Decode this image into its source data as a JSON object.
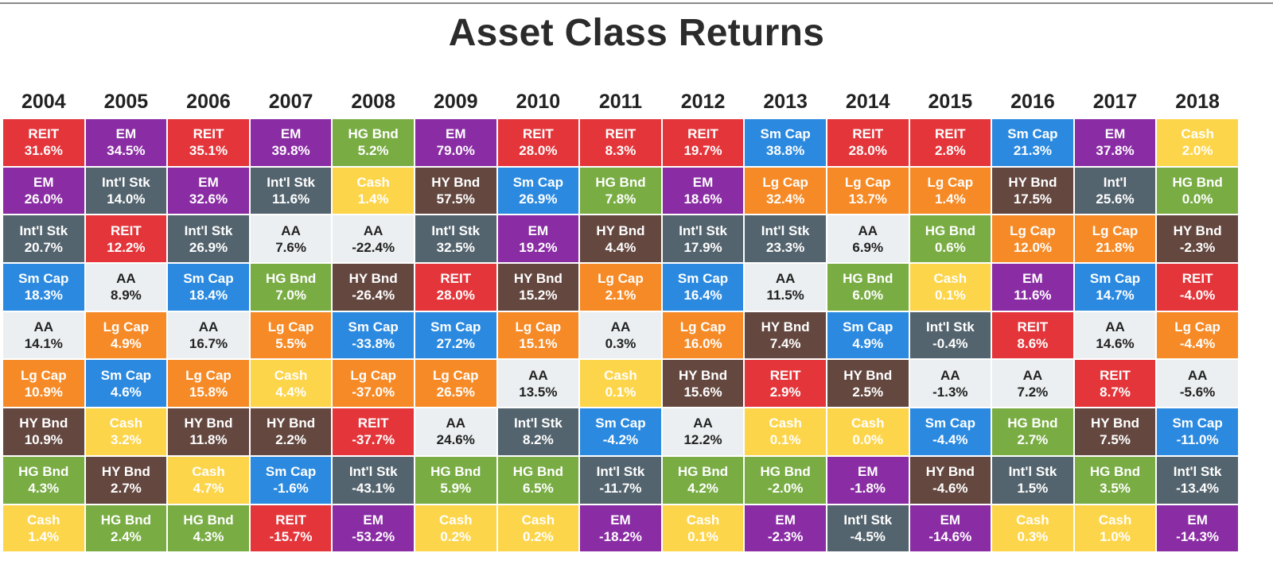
{
  "title": "Asset Class Returns",
  "colors": {
    "REIT": "#e3353a",
    "EM": "#8a2ca4",
    "Int'l Stk": "#54646e",
    "Int'l": "#54646e",
    "Sm Cap": "#2b8ae0",
    "AA": "#eceff1",
    "Lg Cap": "#f68a26",
    "HY Bnd": "#644840",
    "HG Bnd": "#79ad44",
    "Cash": "#fdd54a"
  },
  "chart_data": {
    "type": "table",
    "title": "Asset Class Returns",
    "years": [
      "2004",
      "2005",
      "2006",
      "2007",
      "2008",
      "2009",
      "2010",
      "2011",
      "2012",
      "2013",
      "2014",
      "2015",
      "2016",
      "2017",
      "2018"
    ],
    "columns": [
      [
        {
          "asset": "REIT",
          "value": "31.6%"
        },
        {
          "asset": "EM",
          "value": "26.0%"
        },
        {
          "asset": "Int'l Stk",
          "value": "20.7%"
        },
        {
          "asset": "Sm Cap",
          "value": "18.3%"
        },
        {
          "asset": "AA",
          "value": "14.1%"
        },
        {
          "asset": "Lg Cap",
          "value": "10.9%"
        },
        {
          "asset": "HY Bnd",
          "value": "10.9%"
        },
        {
          "asset": "HG Bnd",
          "value": "4.3%"
        },
        {
          "asset": "Cash",
          "value": "1.4%"
        }
      ],
      [
        {
          "asset": "EM",
          "value": "34.5%"
        },
        {
          "asset": "Int'l Stk",
          "value": "14.0%"
        },
        {
          "asset": "REIT",
          "value": "12.2%"
        },
        {
          "asset": "AA",
          "value": "8.9%"
        },
        {
          "asset": "Lg Cap",
          "value": "4.9%"
        },
        {
          "asset": "Sm Cap",
          "value": "4.6%"
        },
        {
          "asset": "Cash",
          "value": "3.2%"
        },
        {
          "asset": "HY Bnd",
          "value": "2.7%"
        },
        {
          "asset": "HG Bnd",
          "value": "2.4%"
        }
      ],
      [
        {
          "asset": "REIT",
          "value": "35.1%"
        },
        {
          "asset": "EM",
          "value": "32.6%"
        },
        {
          "asset": "Int'l Stk",
          "value": "26.9%"
        },
        {
          "asset": "Sm Cap",
          "value": "18.4%"
        },
        {
          "asset": "AA",
          "value": "16.7%"
        },
        {
          "asset": "Lg Cap",
          "value": "15.8%"
        },
        {
          "asset": "HY Bnd",
          "value": "11.8%"
        },
        {
          "asset": "Cash",
          "value": "4.7%"
        },
        {
          "asset": "HG Bnd",
          "value": "4.3%"
        }
      ],
      [
        {
          "asset": "EM",
          "value": "39.8%"
        },
        {
          "asset": "Int'l Stk",
          "value": "11.6%"
        },
        {
          "asset": "AA",
          "value": "7.6%"
        },
        {
          "asset": "HG Bnd",
          "value": "7.0%"
        },
        {
          "asset": "Lg Cap",
          "value": "5.5%"
        },
        {
          "asset": "Cash",
          "value": "4.4%"
        },
        {
          "asset": "HY Bnd",
          "value": "2.2%"
        },
        {
          "asset": "Sm Cap",
          "value": "-1.6%"
        },
        {
          "asset": "REIT",
          "value": "-15.7%"
        }
      ],
      [
        {
          "asset": "HG Bnd",
          "value": "5.2%"
        },
        {
          "asset": "Cash",
          "value": "1.4%"
        },
        {
          "asset": "AA",
          "value": "-22.4%"
        },
        {
          "asset": "HY Bnd",
          "value": "-26.4%"
        },
        {
          "asset": "Sm Cap",
          "value": "-33.8%"
        },
        {
          "asset": "Lg Cap",
          "value": "-37.0%"
        },
        {
          "asset": "REIT",
          "value": "-37.7%"
        },
        {
          "asset": "Int'l Stk",
          "value": "-43.1%"
        },
        {
          "asset": "EM",
          "value": "-53.2%"
        }
      ],
      [
        {
          "asset": "EM",
          "value": "79.0%"
        },
        {
          "asset": "HY Bnd",
          "value": "57.5%"
        },
        {
          "asset": "Int'l Stk",
          "value": "32.5%"
        },
        {
          "asset": "REIT",
          "value": "28.0%"
        },
        {
          "asset": "Sm Cap",
          "value": "27.2%"
        },
        {
          "asset": "Lg Cap",
          "value": "26.5%"
        },
        {
          "asset": "AA",
          "value": "24.6%"
        },
        {
          "asset": "HG Bnd",
          "value": "5.9%"
        },
        {
          "asset": "Cash",
          "value": "0.2%"
        }
      ],
      [
        {
          "asset": "REIT",
          "value": "28.0%"
        },
        {
          "asset": "Sm Cap",
          "value": "26.9%"
        },
        {
          "asset": "EM",
          "value": "19.2%"
        },
        {
          "asset": "HY Bnd",
          "value": "15.2%"
        },
        {
          "asset": "Lg Cap",
          "value": "15.1%"
        },
        {
          "asset": "AA",
          "value": "13.5%"
        },
        {
          "asset": "Int'l Stk",
          "value": "8.2%"
        },
        {
          "asset": "HG Bnd",
          "value": "6.5%"
        },
        {
          "asset": "Cash",
          "value": "0.2%"
        }
      ],
      [
        {
          "asset": "REIT",
          "value": "8.3%"
        },
        {
          "asset": "HG Bnd",
          "value": "7.8%"
        },
        {
          "asset": "HY Bnd",
          "value": "4.4%"
        },
        {
          "asset": "Lg Cap",
          "value": "2.1%"
        },
        {
          "asset": "AA",
          "value": "0.3%"
        },
        {
          "asset": "Cash",
          "value": "0.1%"
        },
        {
          "asset": "Sm Cap",
          "value": "-4.2%"
        },
        {
          "asset": "Int'l Stk",
          "value": "-11.7%"
        },
        {
          "asset": "EM",
          "value": "-18.2%"
        }
      ],
      [
        {
          "asset": "REIT",
          "value": "19.7%"
        },
        {
          "asset": "EM",
          "value": "18.6%"
        },
        {
          "asset": "Int'l Stk",
          "value": "17.9%"
        },
        {
          "asset": "Sm Cap",
          "value": "16.4%"
        },
        {
          "asset": "Lg Cap",
          "value": "16.0%"
        },
        {
          "asset": "HY Bnd",
          "value": "15.6%"
        },
        {
          "asset": "AA",
          "value": "12.2%"
        },
        {
          "asset": "HG Bnd",
          "value": "4.2%"
        },
        {
          "asset": "Cash",
          "value": "0.1%"
        }
      ],
      [
        {
          "asset": "Sm Cap",
          "value": "38.8%"
        },
        {
          "asset": "Lg Cap",
          "value": "32.4%"
        },
        {
          "asset": "Int'l Stk",
          "value": "23.3%"
        },
        {
          "asset": "AA",
          "value": "11.5%"
        },
        {
          "asset": "HY Bnd",
          "value": "7.4%"
        },
        {
          "asset": "REIT",
          "value": "2.9%"
        },
        {
          "asset": "Cash",
          "value": "0.1%"
        },
        {
          "asset": "HG Bnd",
          "value": "-2.0%"
        },
        {
          "asset": "EM",
          "value": "-2.3%"
        }
      ],
      [
        {
          "asset": "REIT",
          "value": "28.0%"
        },
        {
          "asset": "Lg Cap",
          "value": "13.7%"
        },
        {
          "asset": "AA",
          "value": "6.9%"
        },
        {
          "asset": "HG Bnd",
          "value": "6.0%"
        },
        {
          "asset": "Sm Cap",
          "value": "4.9%"
        },
        {
          "asset": "HY Bnd",
          "value": "2.5%"
        },
        {
          "asset": "Cash",
          "value": "0.0%"
        },
        {
          "asset": "EM",
          "value": "-1.8%"
        },
        {
          "asset": "Int'l Stk",
          "value": "-4.5%"
        }
      ],
      [
        {
          "asset": "REIT",
          "value": "2.8%"
        },
        {
          "asset": "Lg Cap",
          "value": "1.4%"
        },
        {
          "asset": "HG Bnd",
          "value": "0.6%"
        },
        {
          "asset": "Cash",
          "value": "0.1%"
        },
        {
          "asset": "Int'l Stk",
          "value": "-0.4%"
        },
        {
          "asset": "AA",
          "value": "-1.3%"
        },
        {
          "asset": "Sm Cap",
          "value": "-4.4%"
        },
        {
          "asset": "HY Bnd",
          "value": "-4.6%"
        },
        {
          "asset": "EM",
          "value": "-14.6%"
        }
      ],
      [
        {
          "asset": "Sm Cap",
          "value": "21.3%"
        },
        {
          "asset": "HY Bnd",
          "value": "17.5%"
        },
        {
          "asset": "Lg Cap",
          "value": "12.0%"
        },
        {
          "asset": "EM",
          "value": "11.6%"
        },
        {
          "asset": "REIT",
          "value": "8.6%"
        },
        {
          "asset": "AA",
          "value": "7.2%"
        },
        {
          "asset": "HG Bnd",
          "value": "2.7%"
        },
        {
          "asset": "Int'l Stk",
          "value": "1.5%"
        },
        {
          "asset": "Cash",
          "value": "0.3%"
        }
      ],
      [
        {
          "asset": "EM",
          "value": "37.8%"
        },
        {
          "asset": "Int'l",
          "value": "25.6%"
        },
        {
          "asset": "Lg Cap",
          "value": "21.8%"
        },
        {
          "asset": "Sm Cap",
          "value": "14.7%"
        },
        {
          "asset": "AA",
          "value": "14.6%"
        },
        {
          "asset": "REIT",
          "value": "8.7%"
        },
        {
          "asset": "HY Bnd",
          "value": "7.5%"
        },
        {
          "asset": "HG Bnd",
          "value": "3.5%"
        },
        {
          "asset": "Cash",
          "value": "1.0%"
        }
      ],
      [
        {
          "asset": "Cash",
          "value": "2.0%"
        },
        {
          "asset": "HG Bnd",
          "value": "0.0%"
        },
        {
          "asset": "HY Bnd",
          "value": "-2.3%"
        },
        {
          "asset": "REIT",
          "value": "-4.0%"
        },
        {
          "asset": "Lg Cap",
          "value": "-4.4%"
        },
        {
          "asset": "AA",
          "value": "-5.6%"
        },
        {
          "asset": "Sm Cap",
          "value": "-11.0%"
        },
        {
          "asset": "Int'l Stk",
          "value": "-13.4%"
        },
        {
          "asset": "EM",
          "value": "-14.3%"
        }
      ]
    ]
  }
}
